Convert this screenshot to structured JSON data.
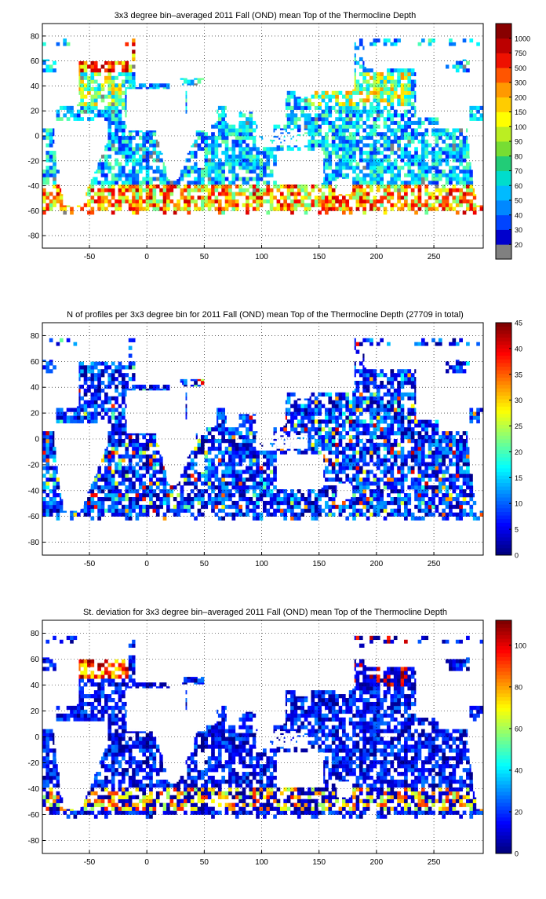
{
  "chart_data": [
    {
      "type": "heatmap",
      "title": "3x3 degree bin–averaged 2011 Fall (OND) mean Top of the Thermocline Depth",
      "x_ticks": [
        -50,
        0,
        50,
        100,
        150,
        200,
        250
      ],
      "y_ticks": [
        80,
        60,
        40,
        20,
        0,
        -20,
        -40,
        -60,
        -80
      ],
      "xlim": [
        -91,
        293
      ],
      "ylim": [
        -90,
        90
      ],
      "grid": true,
      "bin_size_deg": 3,
      "colorbar": {
        "scale": "categorical",
        "labels": [
          "20",
          "30",
          "40",
          "50",
          "60",
          "70",
          "80",
          "90",
          "100",
          "150",
          "200",
          "300",
          "500",
          "750",
          "1000"
        ],
        "colors": [
          "#808080",
          "#0000cc",
          "#0044ff",
          "#0088ff",
          "#00bbff",
          "#00ddcc",
          "#22cc77",
          "#77dd33",
          "#bbee22",
          "#ffff00",
          "#ffcc00",
          "#ff9900",
          "#ff5500",
          "#ee1100",
          "#bb0000",
          "#880000"
        ]
      }
    },
    {
      "type": "heatmap",
      "title": "N of profiles per 3x3 degree bin for 2011 Fall (OND) mean Top of the Thermocline Depth  (27709 in total)",
      "x_ticks": [
        -50,
        0,
        50,
        100,
        150,
        200,
        250
      ],
      "y_ticks": [
        80,
        60,
        40,
        20,
        0,
        -20,
        -40,
        -60,
        -80
      ],
      "xlim": [
        -91,
        293
      ],
      "ylim": [
        -90,
        90
      ],
      "grid": true,
      "bin_size_deg": 3,
      "colorbar": {
        "scale": "continuous",
        "range": [
          0,
          45
        ],
        "ticks": [
          "0",
          "5",
          "10",
          "15",
          "20",
          "25",
          "30",
          "35",
          "40",
          "45"
        ]
      }
    },
    {
      "type": "heatmap",
      "title": "St. deviation for 3x3 degree bin–averaged 2011 Fall (OND) mean Top of the Thermocline Depth",
      "x_ticks": [
        -50,
        0,
        50,
        100,
        150,
        200,
        250
      ],
      "y_ticks": [
        80,
        60,
        40,
        20,
        0,
        -20,
        -40,
        -60,
        -80
      ],
      "xlim": [
        -91,
        293
      ],
      "ylim": [
        -90,
        90
      ],
      "grid": true,
      "bin_size_deg": 3,
      "colorbar": {
        "scale": "continuous",
        "range": [
          0,
          112
        ],
        "ticks": [
          "0",
          "20",
          "40",
          "60",
          "80",
          "100"
        ]
      }
    }
  ]
}
